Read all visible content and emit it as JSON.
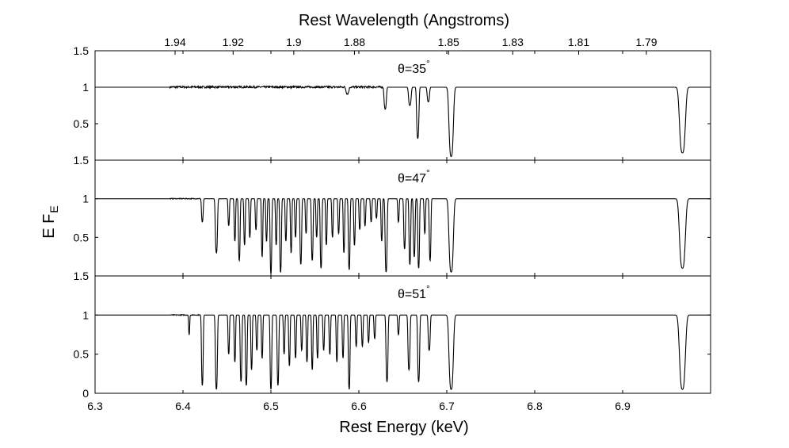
{
  "chart_data": {
    "type": "line",
    "top_axis_label": "Rest Wavelength (Angstroms)",
    "xlabel": "Rest Energy (keV)",
    "ylabel_main": "E F",
    "ylabel_sub": "E",
    "xlim": [
      6.3,
      7.0
    ],
    "x_ticks": [
      "6.3",
      "6.4",
      "6.5",
      "6.6",
      "6.7",
      "6.8",
      "6.9"
    ],
    "x_tick_values": [
      6.3,
      6.4,
      6.5,
      6.6,
      6.7,
      6.8,
      6.9
    ],
    "wavelength_ticks": [
      "1.94",
      "1.92",
      "1.9",
      "1.88",
      "1.85",
      "1.83",
      "1.81",
      "1.79"
    ],
    "wavelength_tick_energies": [
      6.391,
      6.457,
      6.526,
      6.595,
      6.702,
      6.775,
      6.85,
      6.927
    ],
    "ylim": [
      0,
      1.5
    ],
    "panels": [
      {
        "label": "θ=35",
        "degree": "°",
        "y_ticks": [
          "1.5",
          "1",
          "0.5"
        ],
        "y_tick_values": [
          1.5,
          1,
          0.5
        ],
        "noise": [
          6.385,
          6.63,
          0.025
        ],
        "lines": [
          [
            6.587,
            0.09,
            0.002
          ],
          [
            6.63,
            0.3,
            0.0016
          ],
          [
            6.658,
            0.25,
            0.0018
          ],
          [
            6.667,
            0.7,
            0.0016
          ],
          [
            6.679,
            0.2,
            0.0016
          ],
          [
            6.705,
            0.95,
            0.003
          ],
          [
            6.968,
            0.9,
            0.004
          ]
        ]
      },
      {
        "label": "θ=47",
        "degree": "°",
        "y_ticks": [
          "1.5",
          "1",
          "0.5"
        ],
        "y_tick_values": [
          1.5,
          1,
          0.5
        ],
        "noise": [
          6.385,
          6.42,
          0.01
        ],
        "lines": [
          [
            6.422,
            0.3,
            0.0012
          ],
          [
            6.438,
            0.7,
            0.0015
          ],
          [
            6.452,
            0.35,
            0.001
          ],
          [
            6.459,
            0.55,
            0.001
          ],
          [
            6.464,
            0.8,
            0.0012
          ],
          [
            6.47,
            0.6,
            0.001
          ],
          [
            6.476,
            0.5,
            0.001
          ],
          [
            6.483,
            0.4,
            0.001
          ],
          [
            6.49,
            0.75,
            0.001
          ],
          [
            6.495,
            0.55,
            0.001
          ],
          [
            6.5,
            0.97,
            0.0012
          ],
          [
            6.506,
            0.6,
            0.001
          ],
          [
            6.511,
            0.95,
            0.0012
          ],
          [
            6.517,
            0.55,
            0.001
          ],
          [
            6.523,
            0.7,
            0.001
          ],
          [
            6.528,
            0.5,
            0.001
          ],
          [
            6.534,
            0.85,
            0.0012
          ],
          [
            6.54,
            0.45,
            0.001
          ],
          [
            6.547,
            0.8,
            0.0012
          ],
          [
            6.552,
            0.5,
            0.001
          ],
          [
            6.557,
            0.9,
            0.0012
          ],
          [
            6.563,
            0.6,
            0.001
          ],
          [
            6.57,
            0.5,
            0.001
          ],
          [
            6.577,
            0.45,
            0.001
          ],
          [
            6.583,
            0.7,
            0.001
          ],
          [
            6.589,
            0.92,
            0.0012
          ],
          [
            6.595,
            0.6,
            0.001
          ],
          [
            6.601,
            0.4,
            0.001
          ],
          [
            6.607,
            0.35,
            0.001
          ],
          [
            6.614,
            0.3,
            0.001
          ],
          [
            6.62,
            0.25,
            0.001
          ],
          [
            6.626,
            0.55,
            0.001
          ],
          [
            6.631,
            0.95,
            0.0014
          ],
          [
            6.645,
            0.3,
            0.001
          ],
          [
            6.652,
            0.65,
            0.0012
          ],
          [
            6.658,
            0.85,
            0.0012
          ],
          [
            6.663,
            0.75,
            0.0012
          ],
          [
            6.668,
            0.9,
            0.0012
          ],
          [
            6.675,
            0.45,
            0.001
          ],
          [
            6.681,
            0.8,
            0.0012
          ],
          [
            6.705,
            0.95,
            0.003
          ],
          [
            6.968,
            0.9,
            0.004
          ]
        ]
      },
      {
        "label": "θ=51",
        "degree": "°",
        "y_ticks": [
          "1.5",
          "1",
          "0.5",
          "0"
        ],
        "y_tick_values": [
          1.5,
          1,
          0.5,
          0
        ],
        "noise": [
          6.385,
          6.42,
          0.01
        ],
        "lines": [
          [
            6.407,
            0.25,
            0.0008
          ],
          [
            6.422,
            0.9,
            0.0012
          ],
          [
            6.438,
            0.95,
            0.0014
          ],
          [
            6.452,
            0.5,
            0.001
          ],
          [
            6.459,
            0.6,
            0.001
          ],
          [
            6.466,
            0.85,
            0.0012
          ],
          [
            6.472,
            0.9,
            0.0012
          ],
          [
            6.478,
            0.7,
            0.001
          ],
          [
            6.484,
            0.45,
            0.001
          ],
          [
            6.49,
            0.55,
            0.001
          ],
          [
            6.5,
            0.95,
            0.0012
          ],
          [
            6.508,
            0.9,
            0.0012
          ],
          [
            6.515,
            0.5,
            0.001
          ],
          [
            6.521,
            0.65,
            0.001
          ],
          [
            6.528,
            0.55,
            0.001
          ],
          [
            6.535,
            0.45,
            0.001
          ],
          [
            6.541,
            0.6,
            0.001
          ],
          [
            6.547,
            0.7,
            0.001
          ],
          [
            6.553,
            0.55,
            0.001
          ],
          [
            6.56,
            0.45,
            0.001
          ],
          [
            6.567,
            0.5,
            0.001
          ],
          [
            6.575,
            0.6,
            0.001
          ],
          [
            6.582,
            0.55,
            0.001
          ],
          [
            6.589,
            0.95,
            0.0012
          ],
          [
            6.597,
            0.4,
            0.001
          ],
          [
            6.604,
            0.4,
            0.001
          ],
          [
            6.611,
            0.35,
            0.001
          ],
          [
            6.618,
            0.3,
            0.001
          ],
          [
            6.632,
            0.85,
            0.0014
          ],
          [
            6.645,
            0.25,
            0.001
          ],
          [
            6.657,
            0.7,
            0.0014
          ],
          [
            6.668,
            0.85,
            0.0014
          ],
          [
            6.68,
            0.45,
            0.0014
          ],
          [
            6.705,
            0.95,
            0.003
          ],
          [
            6.968,
            0.95,
            0.004
          ]
        ]
      }
    ]
  }
}
